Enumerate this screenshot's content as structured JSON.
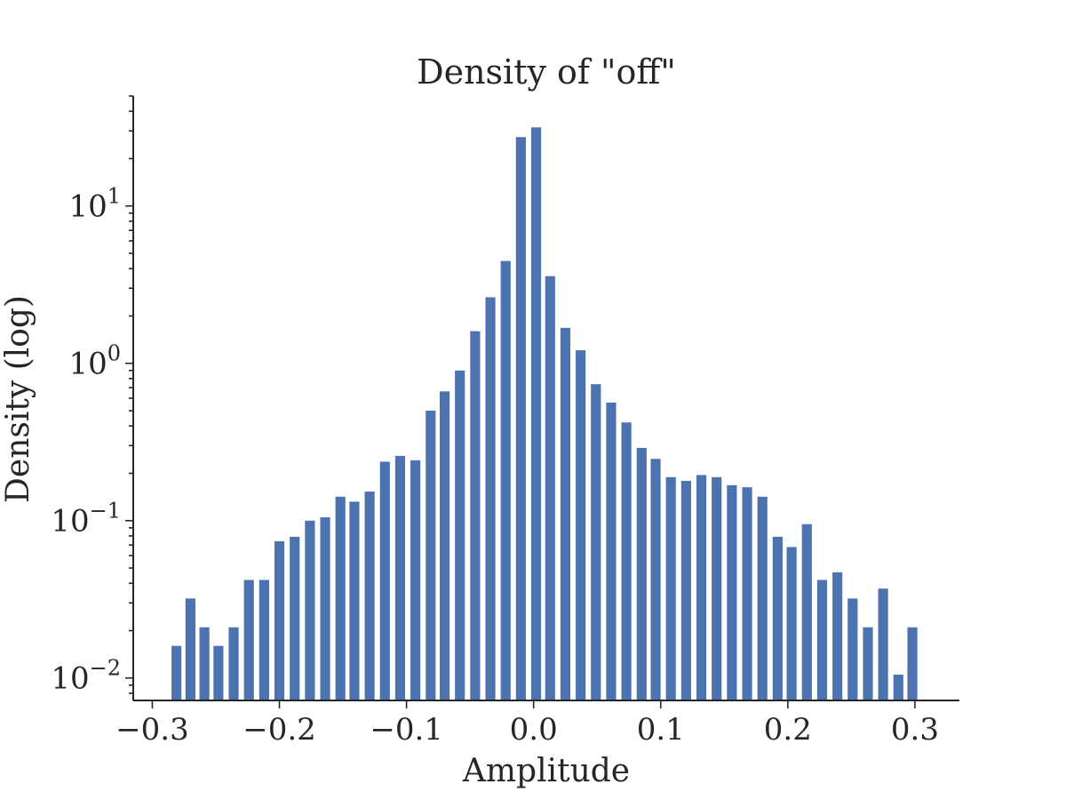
{
  "chart_data": {
    "type": "bar",
    "title": "Density of \"off\"",
    "xlabel": "Amplitude",
    "ylabel": "Density (log)",
    "yscale": "log",
    "xlim": [
      -0.315,
      0.335
    ],
    "ylim": [
      0.0072,
      50
    ],
    "bin_width": 0.01,
    "xticks": [
      {
        "value": -0.3,
        "label": "−0.3"
      },
      {
        "value": -0.2,
        "label": "−0.2"
      },
      {
        "value": -0.1,
        "label": "−0.1"
      },
      {
        "value": 0.0,
        "label": "0.0"
      },
      {
        "value": 0.1,
        "label": "0.1"
      },
      {
        "value": 0.2,
        "label": "0.2"
      },
      {
        "value": 0.3,
        "label": "0.3"
      }
    ],
    "yticks": [
      {
        "value": 0.01,
        "base": "10",
        "exp": "−2"
      },
      {
        "value": 0.1,
        "base": "10",
        "exp": "−1"
      },
      {
        "value": 1,
        "base": "10",
        "exp": "0"
      },
      {
        "value": 10,
        "base": "10",
        "exp": "1"
      }
    ],
    "grid": false,
    "color": "#4c72b0",
    "bins": [
      -0.281,
      -0.27,
      -0.259,
      -0.248,
      -0.236,
      -0.224,
      -0.212,
      -0.2,
      -0.188,
      -0.176,
      -0.164,
      -0.152,
      -0.141,
      -0.129,
      -0.117,
      -0.105,
      -0.093,
      -0.081,
      -0.07,
      -0.058,
      -0.046,
      -0.034,
      -0.022,
      -0.01,
      0.002,
      0.013,
      0.025,
      0.037,
      0.049,
      0.061,
      0.073,
      0.085,
      0.096,
      0.108,
      0.12,
      0.132,
      0.144,
      0.156,
      0.168,
      0.18,
      0.192,
      0.203,
      0.215,
      0.227,
      0.239,
      0.251,
      0.263,
      0.275,
      0.287,
      0.298
    ],
    "values": [
      0.016,
      0.032,
      0.021,
      0.016,
      0.021,
      0.042,
      0.042,
      0.074,
      0.079,
      0.1,
      0.105,
      0.142,
      0.132,
      0.153,
      0.237,
      0.258,
      0.242,
      0.5,
      0.663,
      0.9,
      1.6,
      2.63,
      4.47,
      27.4,
      31.6,
      3.58,
      1.68,
      1.21,
      0.737,
      0.563,
      0.421,
      0.29,
      0.247,
      0.189,
      0.179,
      0.195,
      0.189,
      0.168,
      0.163,
      0.142,
      0.079,
      0.068,
      0.095,
      0.042,
      0.047,
      0.032,
      0.021,
      0.037,
      0.0105,
      0.021
    ]
  }
}
